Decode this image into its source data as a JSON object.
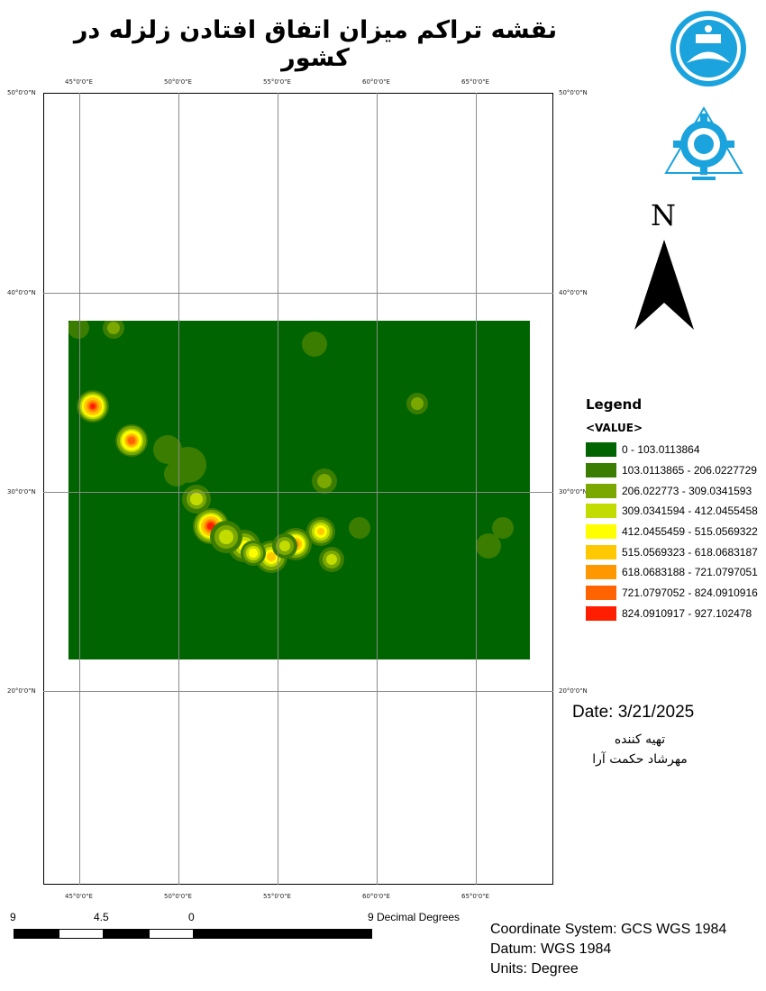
{
  "title": "نقشه تراکم میزان اتفاق افتادن زلزله در کشور",
  "grid": {
    "longitudes": [
      "45°0'0\"E",
      "50°0'0\"E",
      "55°0'0\"E",
      "60°0'0\"E",
      "65°0'0\"E"
    ],
    "latitudes": [
      "50°0'0\"N",
      "40°0'0\"N",
      "30°0'0\"N",
      "20°0'0\"N"
    ]
  },
  "north_arrow": {
    "letter": "N"
  },
  "legend": {
    "title": "Legend",
    "field": "<VALUE>",
    "classes": [
      {
        "label": "0 - 103.0113864",
        "color": "#006400"
      },
      {
        "label": "103.0113865 - 206.0227729",
        "color": "#3a7d00"
      },
      {
        "label": "206.022773 - 309.0341593",
        "color": "#7aa800"
      },
      {
        "label": "309.0341594 - 412.0455458",
        "color": "#c2dc00"
      },
      {
        "label": "412.0455459 - 515.0569322",
        "color": "#ffff00"
      },
      {
        "label": "515.0569323 - 618.0683187",
        "color": "#ffc800"
      },
      {
        "label": "618.0683188 - 721.0797051",
        "color": "#ff9800"
      },
      {
        "label": "721.0797052 - 824.0910916",
        "color": "#ff6400"
      },
      {
        "label": "824.0910917 - 927.102478",
        "color": "#ff1e00"
      }
    ]
  },
  "date": "Date: 3/21/2025",
  "prepared_by": {
    "label": "تهیه کننده",
    "name": "مهرشاد حکمت آرا"
  },
  "scale_bar": {
    "labels": [
      "9",
      "4.5",
      "0",
      "9 Decimal Degrees"
    ]
  },
  "coordinate_info": {
    "system": "Coordinate System: GCS WGS 1984",
    "datum": "Datum: WGS 1984",
    "units": "Units: Degree"
  }
}
